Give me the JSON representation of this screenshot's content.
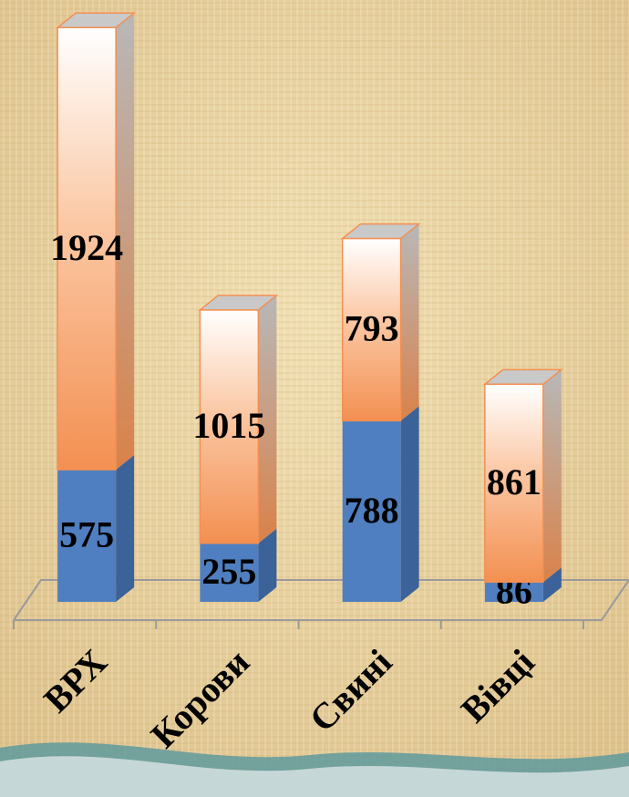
{
  "chart_data": {
    "type": "stacked_bar_3d",
    "categories": [
      "ВРХ",
      "Корови",
      "Свині",
      "Вівці"
    ],
    "series": [
      {
        "color": "#4f7fc0",
        "values": [
          575,
          255,
          788,
          86
        ]
      },
      {
        "color": "#f59a5c",
        "values": [
          1924,
          1015,
          793,
          861
        ]
      }
    ],
    "ylim": [
      0,
      2500
    ]
  }
}
